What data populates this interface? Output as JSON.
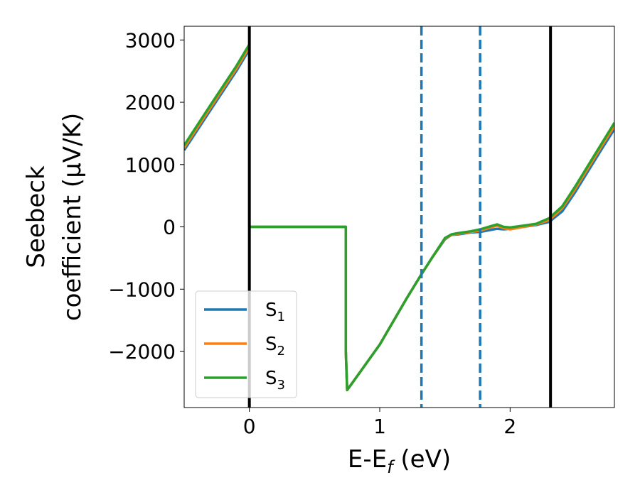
{
  "chart_data": {
    "type": "line",
    "xlabel": "E-E_f (eV)",
    "xlabel_parts": [
      "E-E",
      "f",
      " (eV)"
    ],
    "ylabel_lines": [
      "Seebeck",
      "coefficient  (μV/K)"
    ],
    "xlim": [
      -0.5,
      2.8
    ],
    "ylim": [
      -2900,
      3220
    ],
    "xticks": [
      0,
      1,
      2
    ],
    "xtick_labels": [
      "0",
      "1",
      "2"
    ],
    "yticks": [
      -2000,
      -1000,
      0,
      1000,
      2000,
      3000
    ],
    "ytick_labels": [
      "−2000",
      "−1000",
      "0",
      "1000",
      "2000",
      "3000"
    ],
    "grid": false,
    "legend_placement": "lower-left",
    "series": [
      {
        "name": "S1",
        "legend_label": {
          "base": "S",
          "sub": "1"
        },
        "color": "#1f77b4",
        "x": [
          -0.5,
          -0.3,
          -0.1,
          0.0,
          0.0,
          0.3,
          0.6,
          0.74,
          0.74,
          0.75,
          1.0,
          1.2,
          1.32,
          1.4,
          1.5,
          1.55,
          1.6,
          1.7,
          1.77,
          1.85,
          1.9,
          1.95,
          2.0,
          2.1,
          2.2,
          2.3,
          2.4,
          2.5,
          2.6,
          2.7,
          2.8
        ],
        "y": [
          1230,
          1870,
          2500,
          2850,
          0,
          0,
          0,
          0,
          -2000,
          -2620,
          -1890,
          -1170,
          -760,
          -500,
          -200,
          -130,
          -120,
          -90,
          -80,
          -50,
          -30,
          -40,
          -30,
          0,
          30,
          80,
          250,
          560,
          900,
          1240,
          1570
        ]
      },
      {
        "name": "S2",
        "legend_label": {
          "base": "S",
          "sub": "2"
        },
        "color": "#ff7f0e",
        "x": [
          -0.5,
          -0.3,
          -0.1,
          0.0,
          0.0,
          0.3,
          0.6,
          0.74,
          0.74,
          0.75,
          1.0,
          1.2,
          1.32,
          1.4,
          1.5,
          1.55,
          1.6,
          1.7,
          1.77,
          1.85,
          1.9,
          1.95,
          2.0,
          2.1,
          2.2,
          2.3,
          2.4,
          2.5,
          2.6,
          2.7,
          2.8
        ],
        "y": [
          1270,
          1910,
          2540,
          2890,
          0,
          0,
          0,
          0,
          -2000,
          -2620,
          -1890,
          -1170,
          -760,
          -500,
          -190,
          -130,
          -110,
          -80,
          -60,
          -10,
          20,
          -20,
          -40,
          0,
          40,
          110,
          300,
          610,
          950,
          1290,
          1620
        ]
      },
      {
        "name": "S3",
        "legend_label": {
          "base": "S",
          "sub": "3"
        },
        "color": "#2ca02c",
        "x": [
          -0.5,
          -0.3,
          -0.1,
          0.0,
          0.0,
          0.3,
          0.6,
          0.74,
          0.74,
          0.75,
          1.0,
          1.2,
          1.32,
          1.4,
          1.5,
          1.55,
          1.6,
          1.7,
          1.77,
          1.85,
          1.9,
          1.95,
          2.0,
          2.1,
          2.2,
          2.3,
          2.4,
          2.5,
          2.6,
          2.7,
          2.8
        ],
        "y": [
          1310,
          1950,
          2580,
          2930,
          0,
          0,
          0,
          0,
          -2000,
          -2620,
          -1890,
          -1170,
          -760,
          -500,
          -180,
          -120,
          -100,
          -70,
          -40,
          10,
          40,
          0,
          -10,
          20,
          50,
          140,
          330,
          650,
          990,
          1330,
          1670
        ]
      }
    ],
    "vertical_lines": [
      {
        "x": 0.0,
        "style": "solid",
        "color": "#000000"
      },
      {
        "x": 2.31,
        "style": "solid",
        "color": "#000000"
      },
      {
        "x": 1.32,
        "style": "dashed",
        "color": "#1f77b4"
      },
      {
        "x": 1.77,
        "style": "dashed",
        "color": "#1f77b4"
      }
    ]
  }
}
